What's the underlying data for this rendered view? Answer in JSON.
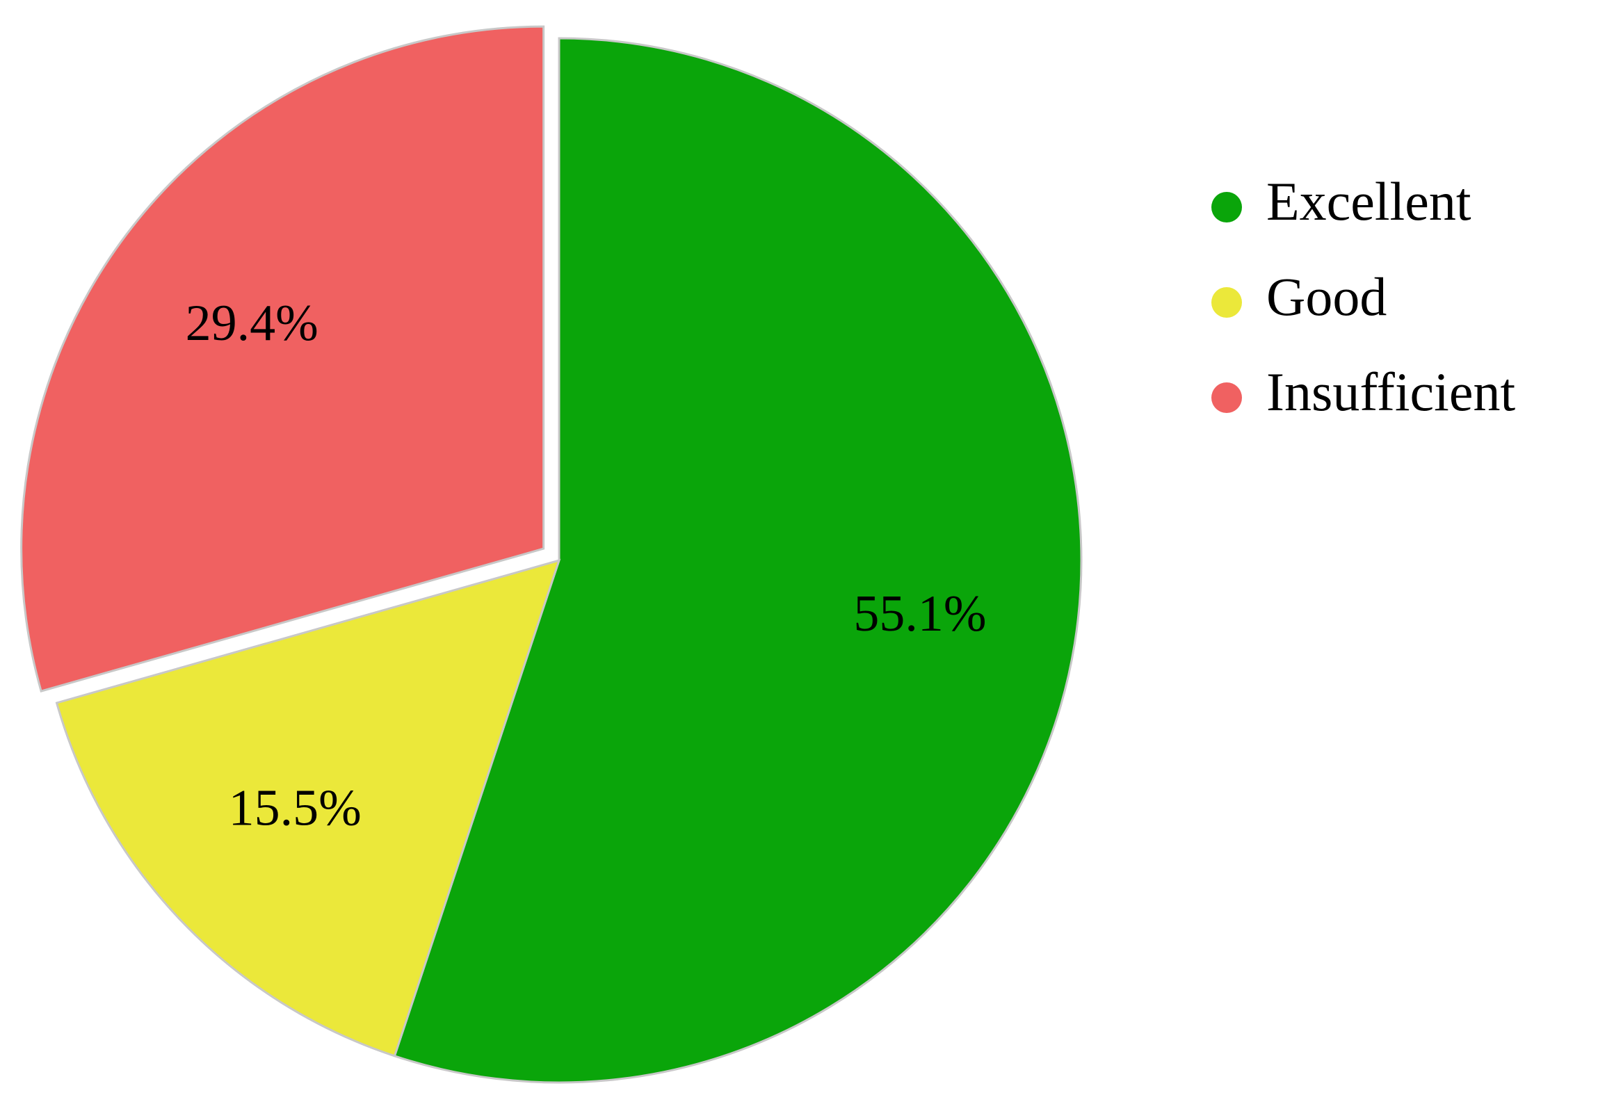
{
  "chart_data": {
    "type": "pie",
    "categories": [
      "Excellent",
      "Good",
      "Insufficient"
    ],
    "values": [
      55.1,
      15.5,
      29.4
    ],
    "value_labels": [
      "55.1%",
      "15.5%",
      "29.4%"
    ],
    "colors": [
      "#0aa50a",
      "#ebe83a",
      "#f06161"
    ],
    "exploded": [
      false,
      false,
      true
    ],
    "legend": "right"
  }
}
